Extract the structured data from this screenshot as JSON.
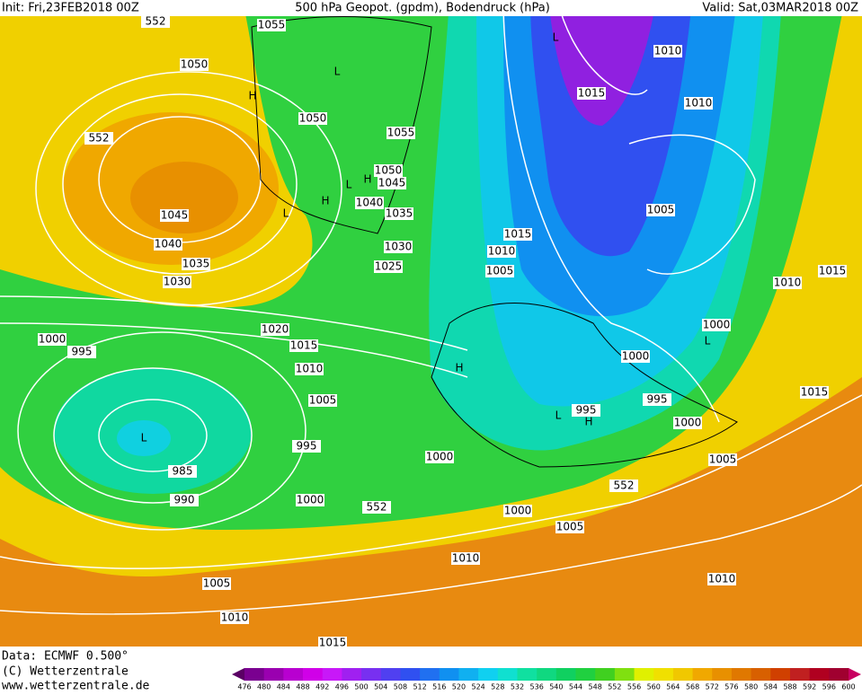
{
  "header": {
    "init": "Init: Fri,23FEB2018 00Z",
    "title": "500 hPa Geopot. (gpdm), Bodendruck (hPa)",
    "valid": "Valid: Sat,03MAR2018 00Z"
  },
  "map": {
    "labels": [
      "1055",
      "1050",
      "552",
      "552",
      "L",
      "H",
      "1050",
      "1055",
      "1050",
      "H",
      "1045",
      "L",
      "H",
      "1040",
      "L",
      "1035",
      "1045",
      "1040",
      "1035",
      "1030",
      "1030",
      "1025",
      "1020",
      "1015",
      "1010",
      "1005",
      "1000",
      "995",
      "L",
      "985",
      "990",
      "995",
      "1000",
      "1000",
      "552",
      "552",
      "1000",
      "1005",
      "1010",
      "1005",
      "1010",
      "1015",
      "1010",
      "1005",
      "1000",
      "995",
      "995",
      "L",
      "H",
      "H",
      "1000",
      "L",
      "1000",
      "1010",
      "1015",
      "1015",
      "1005",
      "1010",
      "1010",
      "1015",
      "L",
      "1015",
      "1010",
      "1005"
    ]
  },
  "footer": {
    "data": "Data: ECMWF  0.500°",
    "copyright": "(C) Wetterzentrale",
    "url": "www.wetterzentrale.de"
  },
  "colorbar": {
    "labels": [
      "476",
      "480",
      "484",
      "488",
      "492",
      "496",
      "500",
      "504",
      "508",
      "512",
      "516",
      "520",
      "524",
      "528",
      "532",
      "536",
      "540",
      "544",
      "548",
      "552",
      "556",
      "560",
      "564",
      "568",
      "572",
      "576",
      "580",
      "584",
      "588",
      "592",
      "596",
      "600"
    ],
    "colors": [
      "#5a0064",
      "#7a0090",
      "#9a00b0",
      "#b800d0",
      "#d000e8",
      "#c818f8",
      "#a020f0",
      "#7830f0",
      "#5040f0",
      "#3050f0",
      "#2070f0",
      "#1090f0",
      "#10b0f0",
      "#10d0f0",
      "#10e0d0",
      "#10e0a0",
      "#10d880",
      "#10d060",
      "#20d040",
      "#40d020",
      "#80e010",
      "#e0f000",
      "#f0e000",
      "#f0c800",
      "#f0a800",
      "#e89000",
      "#e07800",
      "#d86000",
      "#d04000",
      "#c02020",
      "#b00020",
      "#a00030",
      "#c80060"
    ]
  }
}
